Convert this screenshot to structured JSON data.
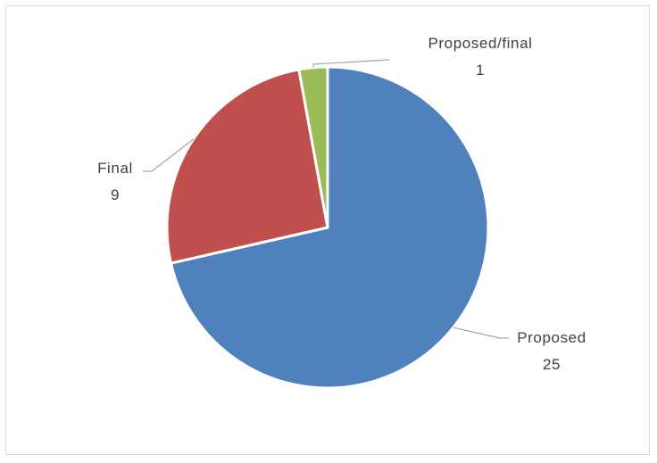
{
  "chart_data": {
    "type": "pie",
    "slices": [
      {
        "label": "Proposed",
        "value": 25,
        "color": "#4f81bd"
      },
      {
        "label": "Final",
        "value": 9,
        "color": "#c0504d"
      },
      {
        "label": "Proposed/final",
        "value": 1,
        "color": "#9bbb59"
      }
    ],
    "start": "12 o'clock",
    "direction": "clockwise"
  }
}
